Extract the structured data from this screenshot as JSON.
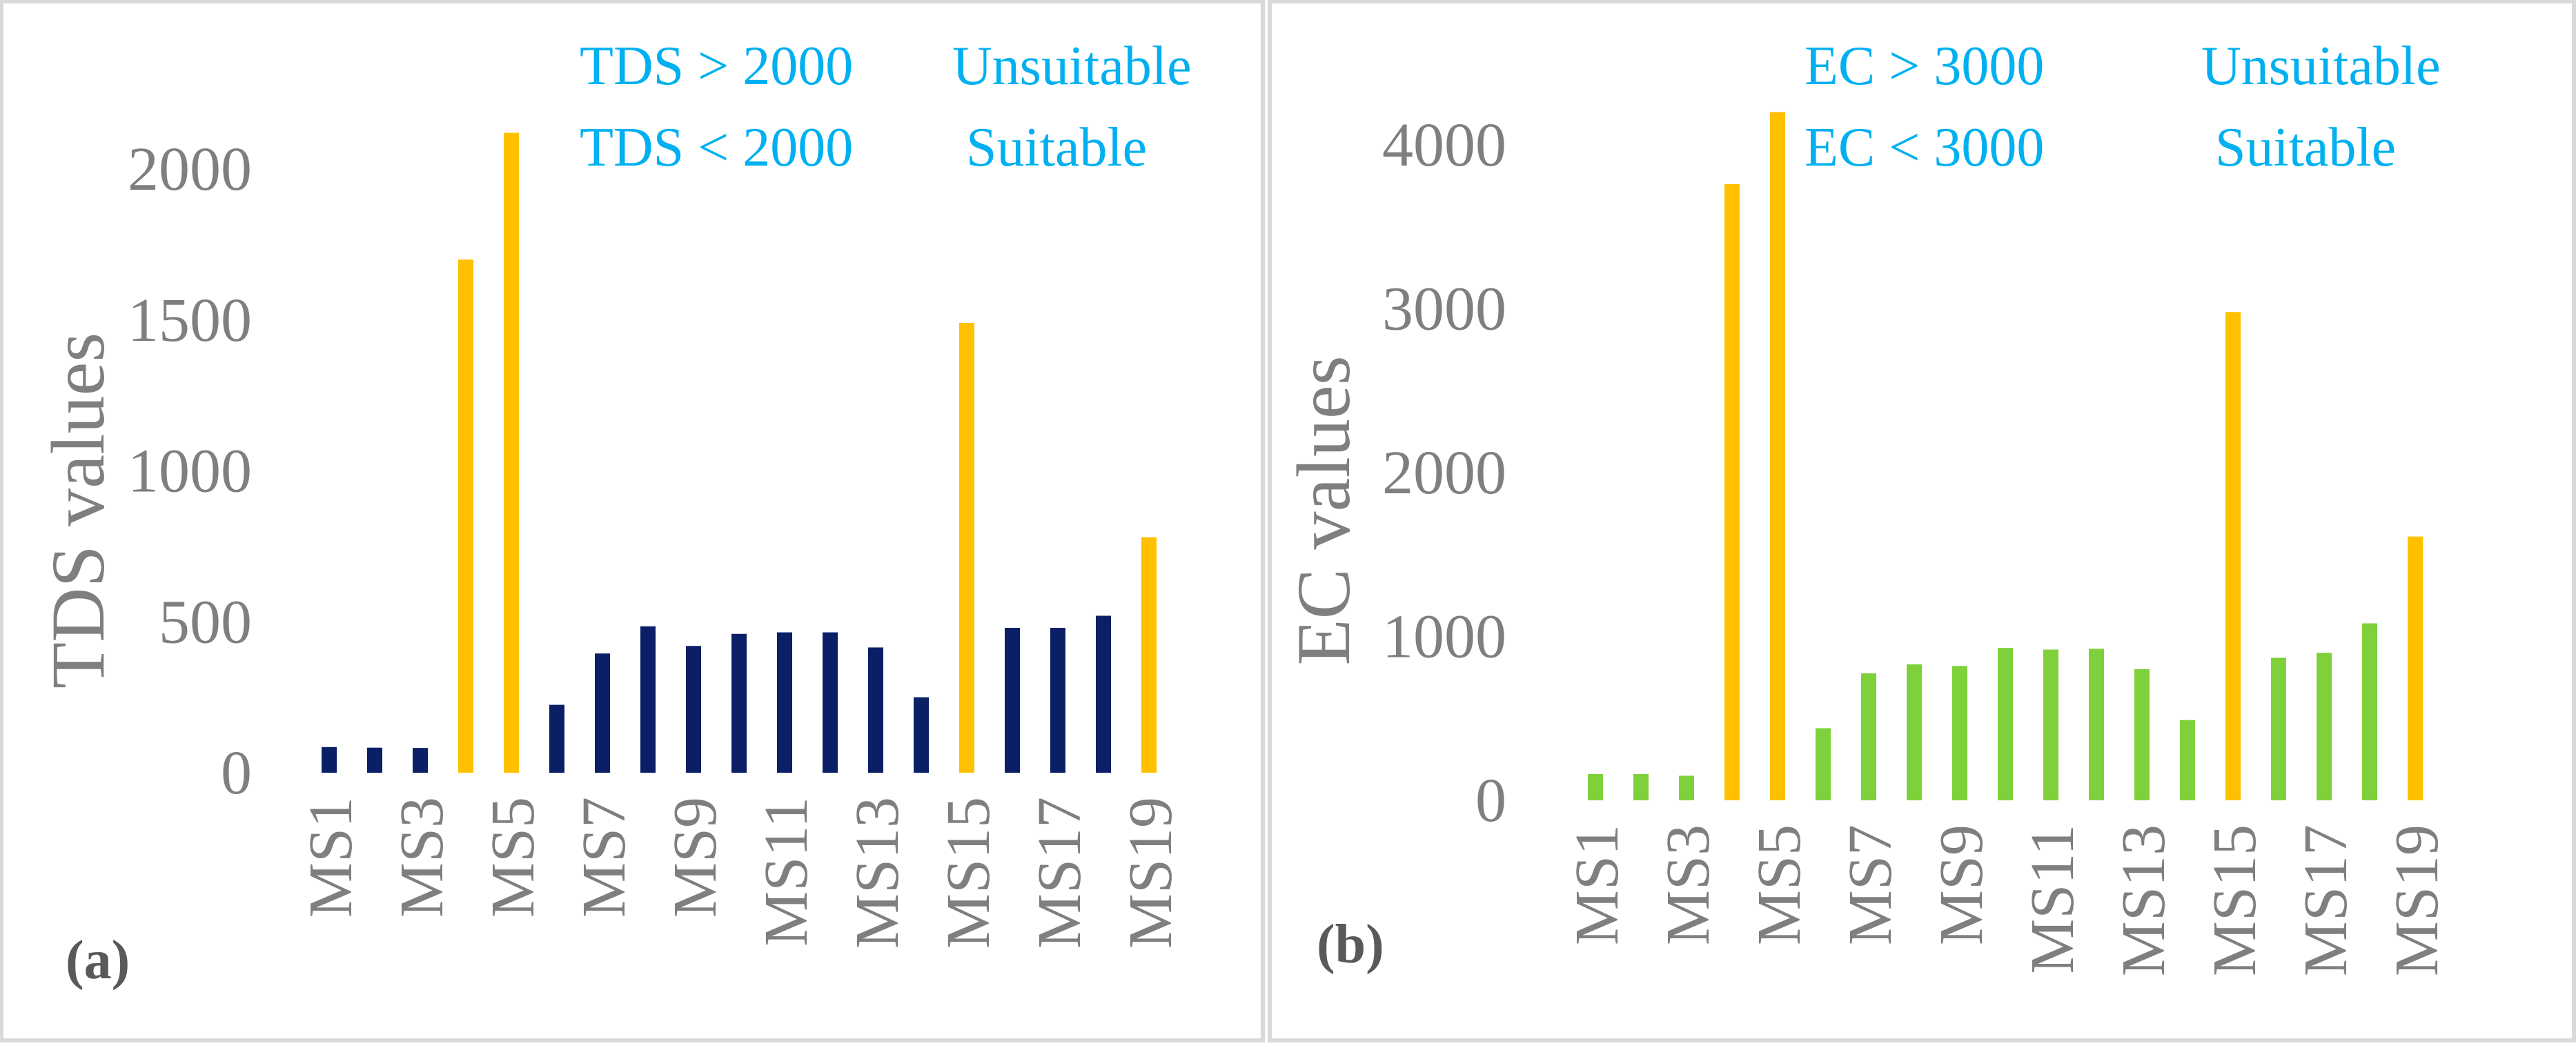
{
  "colors": {
    "panel_a_normal": "#0b1f66",
    "panel_b_normal": "#7fd13b",
    "highlight": "#ffc000",
    "annotation": "#00b0f0",
    "tick_text": "#7f7f7f",
    "panel_border": "#d9d9d9"
  },
  "chart_data": [
    {
      "type": "bar",
      "panel_label": "(a)",
      "ylabel": "TDS values",
      "xlabel": "",
      "ylim": [
        0,
        2000
      ],
      "yticks": [
        "0",
        "500",
        "1000",
        "1500",
        "2000"
      ],
      "categories": [
        "MS1",
        "MS2",
        "MS3",
        "MS4",
        "MS5",
        "MS6",
        "MS7",
        "MS8",
        "MS9",
        "MS10",
        "MS11",
        "MS12",
        "MS13",
        "MS14",
        "MS15",
        "MS16",
        "MS17",
        "MS18",
        "MS19"
      ],
      "xtick_labels": [
        "MS1",
        "MS3",
        "MS5",
        "MS7",
        "MS9",
        "MS11",
        "MS13",
        "MS15",
        "MS17",
        "MS19"
      ],
      "values": [
        85,
        83,
        82,
        1700,
        2120,
        225,
        395,
        485,
        420,
        460,
        465,
        465,
        415,
        250,
        1490,
        480,
        480,
        520,
        780
      ],
      "highlighted": [
        4,
        5,
        15,
        19
      ],
      "annotations": [
        {
          "condition": "TDS > 2000",
          "class": "Unsuitable"
        },
        {
          "condition": "TDS < 2000",
          "class": "Suitable"
        }
      ],
      "grid": false,
      "legend": "none"
    },
    {
      "type": "bar",
      "panel_label": "(b)",
      "ylabel": "EC  values",
      "xlabel": "",
      "ylim": [
        0,
        4000
      ],
      "yticks": [
        "0",
        "1000",
        "2000",
        "3000",
        "4000"
      ],
      "categories": [
        "MS1",
        "MS2",
        "MS3",
        "MS4",
        "MS5",
        "MS6",
        "MS7",
        "MS8",
        "MS9",
        "MS10",
        "MS11",
        "MS12",
        "MS13",
        "MS14",
        "MS15",
        "MS16",
        "MS17",
        "MS18",
        "MS19"
      ],
      "xtick_labels": [
        "MS1",
        "MS3",
        "MS5",
        "MS7",
        "MS9",
        "MS11",
        "MS13",
        "MS15",
        "MS17",
        "MS19"
      ],
      "values": [
        160,
        160,
        150,
        3760,
        4200,
        440,
        775,
        830,
        820,
        930,
        920,
        925,
        800,
        490,
        2980,
        870,
        900,
        1080,
        1610
      ],
      "highlighted": [
        4,
        5,
        15,
        19
      ],
      "annotations": [
        {
          "condition": "EC > 3000",
          "class": "Unsuitable"
        },
        {
          "condition": "EC < 3000",
          "class": "Suitable"
        }
      ],
      "grid": false,
      "legend": "none"
    }
  ]
}
